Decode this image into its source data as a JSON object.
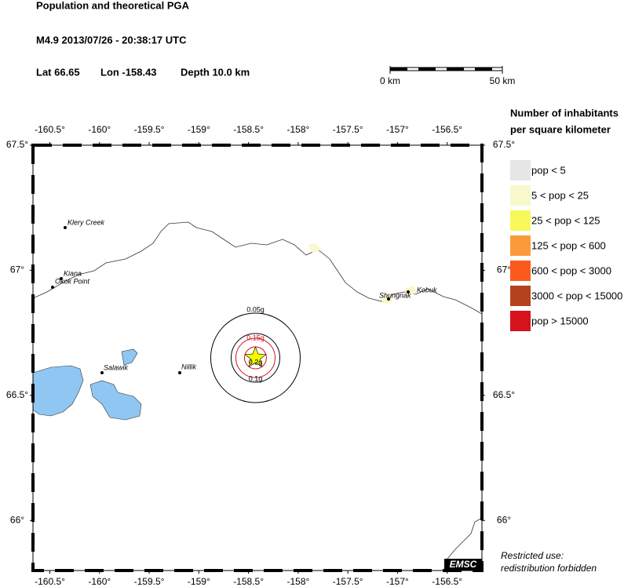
{
  "header": {
    "title": "Population and theoretical PGA",
    "event": "M4.9  2013/07/26 - 20:38:17 UTC",
    "lat": {
      "value": 66.65,
      "label": "Lat 66.65"
    },
    "lon": {
      "value": -158.43,
      "label": "Lon -158.43"
    },
    "depth": "Depth  10.0 km"
  },
  "scale_bar": {
    "start": "0 km",
    "end": "50 km"
  },
  "legend": {
    "title": [
      "Number of inhabitants",
      "per square kilometer"
    ],
    "items": [
      {
        "label": "pop < 5",
        "color": "#e5e6e5"
      },
      {
        "label": "5 < pop < 25",
        "color": "#f8f8cc"
      },
      {
        "label": "25 < pop < 125",
        "color": "#f8f85a"
      },
      {
        "label": "125 < pop < 600",
        "color": "#fa9a3b"
      },
      {
        "label": "600 < pop < 3000",
        "color": "#fb5a1c"
      },
      {
        "label": "3000 < pop < 15000",
        "color": "#b4421c"
      },
      {
        "label": "pop > 15000",
        "color": "#d6121c"
      }
    ]
  },
  "map": {
    "xlim": [
      -160.67,
      -156.15
    ],
    "ylim": [
      65.8,
      67.5
    ],
    "xticks": [
      {
        "value": -160.5,
        "label": "-160.5°"
      },
      {
        "value": -160,
        "label": "-160°"
      },
      {
        "value": -159.5,
        "label": "-159.5°"
      },
      {
        "value": -159,
        "label": "-159°"
      },
      {
        "value": -158.5,
        "label": "-158.5°"
      },
      {
        "value": -158,
        "label": "-158°"
      },
      {
        "value": -157.5,
        "label": "-157.5°"
      },
      {
        "value": -157,
        "label": "-157°"
      },
      {
        "value": -156.5,
        "label": "-156.5°"
      }
    ],
    "yticks": [
      {
        "value": 67.5,
        "label": "67.5°"
      },
      {
        "value": 67,
        "label": "67°"
      },
      {
        "value": 66.5,
        "label": "66.5°"
      },
      {
        "value": 66,
        "label": "66°"
      }
    ],
    "towns": [
      "Klery Creek",
      "Kiana",
      "Okok Point",
      "Salawik",
      "Nillik",
      "Shungnak",
      "Kobuk"
    ],
    "pga_labels": [
      "0.05g",
      "0.15g",
      "0.2g",
      "0.1g"
    ],
    "credit": "EMSC",
    "notice": [
      "Restricted use:",
      "redistribution forbidden"
    ]
  }
}
